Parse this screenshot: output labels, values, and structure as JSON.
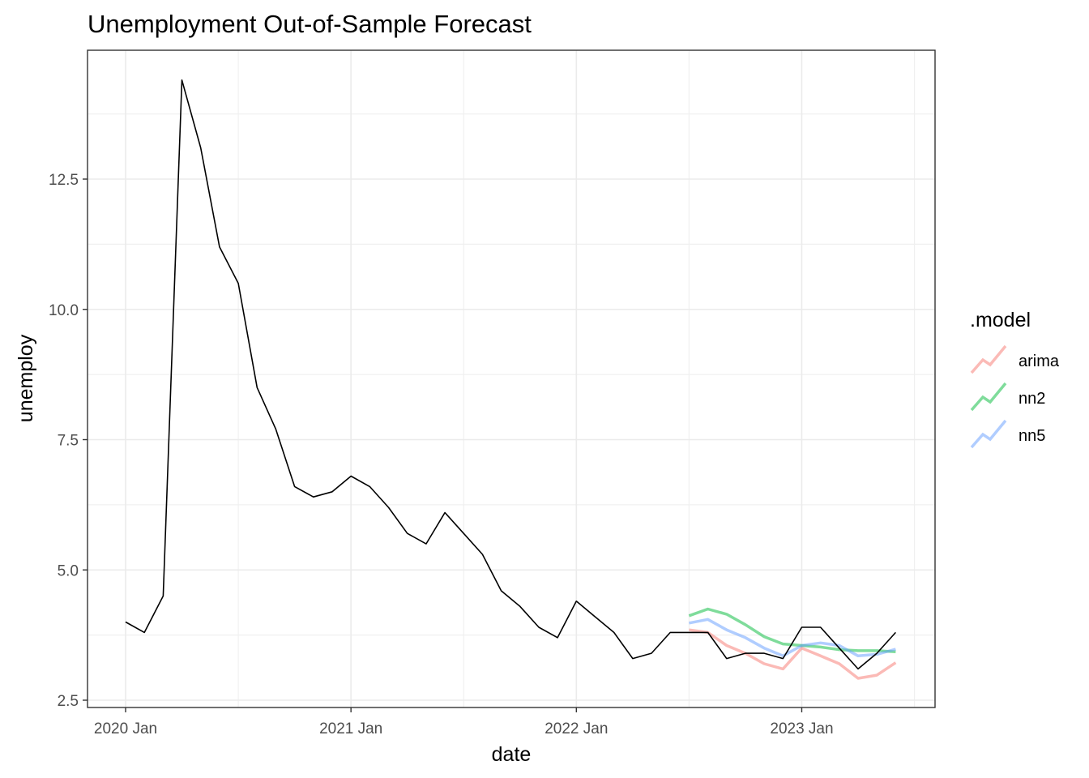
{
  "chart_data": {
    "type": "line",
    "title": "Unemployment Out-of-Sample Forecast",
    "xlabel": "date",
    "ylabel": "unemploy",
    "x_ticks": [
      "2020 Jan",
      "2021 Jan",
      "2022 Jan",
      "2023 Jan"
    ],
    "y_ticks": [
      "2.5",
      "5.0",
      "7.5",
      "10.0",
      "12.5"
    ],
    "ylim": [
      2.5,
      14.8
    ],
    "grid": true,
    "legend": {
      "title": ".model",
      "position": "right"
    },
    "actual": {
      "color": "#000000",
      "x": [
        "2020-01",
        "2020-02",
        "2020-03",
        "2020-04",
        "2020-05",
        "2020-06",
        "2020-07",
        "2020-08",
        "2020-09",
        "2020-10",
        "2020-11",
        "2020-12",
        "2021-01",
        "2021-02",
        "2021-03",
        "2021-04",
        "2021-05",
        "2021-06",
        "2021-07",
        "2021-08",
        "2021-09",
        "2021-10",
        "2021-11",
        "2021-12",
        "2022-01",
        "2022-02",
        "2022-03",
        "2022-04",
        "2022-05",
        "2022-06",
        "2022-07",
        "2022-08",
        "2022-09",
        "2022-10",
        "2022-11",
        "2022-12",
        "2023-01",
        "2023-02",
        "2023-03",
        "2023-04",
        "2023-05",
        "2023-06"
      ],
      "values": [
        4.0,
        3.8,
        4.5,
        14.4,
        13.1,
        11.2,
        10.5,
        8.5,
        7.7,
        6.6,
        6.4,
        6.5,
        6.8,
        6.6,
        6.2,
        5.7,
        5.5,
        6.1,
        5.7,
        5.3,
        4.6,
        4.3,
        3.9,
        3.7,
        4.4,
        4.1,
        3.8,
        3.3,
        3.4,
        3.8,
        3.8,
        3.8,
        3.3,
        3.4,
        3.4,
        3.3,
        3.9,
        3.9,
        3.5,
        3.1,
        3.4,
        3.8
      ]
    },
    "forecast_x": [
      "2022-07",
      "2022-08",
      "2022-09",
      "2022-10",
      "2022-11",
      "2022-12",
      "2023-01",
      "2023-02",
      "2023-03",
      "2023-04",
      "2023-05",
      "2023-06"
    ],
    "series": [
      {
        "name": "arima",
        "color": "#F8766D",
        "values": [
          3.85,
          3.8,
          3.55,
          3.4,
          3.2,
          3.1,
          3.5,
          3.35,
          3.2,
          2.92,
          2.98,
          3.22
        ]
      },
      {
        "name": "nn2",
        "color": "#00BA38",
        "values": [
          4.12,
          4.25,
          4.15,
          3.95,
          3.72,
          3.58,
          3.55,
          3.52,
          3.47,
          3.45,
          3.45,
          3.43
        ]
      },
      {
        "name": "nn5",
        "color": "#619CFF",
        "values": [
          3.98,
          4.05,
          3.85,
          3.7,
          3.5,
          3.35,
          3.55,
          3.6,
          3.55,
          3.35,
          3.38,
          3.48
        ]
      }
    ]
  }
}
